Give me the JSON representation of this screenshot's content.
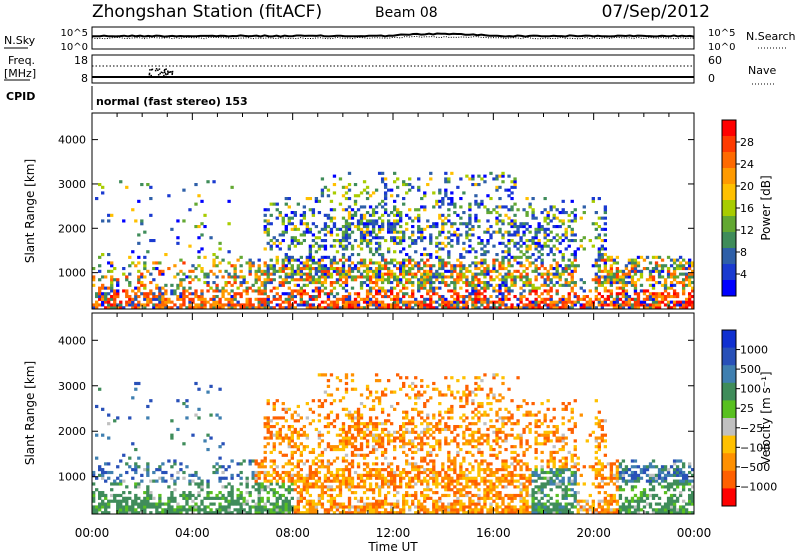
{
  "header": {
    "title": "Zhongshan Station (fitACF)",
    "beam": "Beam 08",
    "date": "07/Sep/2012"
  },
  "strips": {
    "nsky": {
      "label": "N.Sky",
      "left_ticks": [
        "10^5",
        "10^0"
      ],
      "right_label": "N.Search",
      "right_ticks": [
        "10^5",
        "10^0"
      ]
    },
    "freq": {
      "label_line1": "Freq.",
      "label_line2": "[MHz]",
      "left_ticks": [
        "18",
        "8"
      ],
      "right_label": "Nave",
      "right_ticks": [
        "60",
        "0"
      ]
    },
    "cpid": {
      "label": "CPID",
      "text": "normal (fast stereo) 153"
    }
  },
  "colorbars": {
    "power": {
      "title": "Power [dB]",
      "labels": [
        "28",
        "24",
        "20",
        "16",
        "12",
        "8",
        "4"
      ],
      "colors": [
        "#ff0000",
        "#ff3a00",
        "#ff6a00",
        "#ff9a00",
        "#ffc000",
        "#a8cc00",
        "#62a832",
        "#3f8c5a",
        "#2e5fa8",
        "#1a3ad0",
        "#0000ff"
      ]
    },
    "velocity": {
      "title": "Velocity [m s⁻¹]",
      "labels": [
        "1000",
        "500",
        "100",
        "25",
        "−25",
        "−100",
        "−500",
        "−1000"
      ],
      "colors": [
        "#1030d0",
        "#2850b8",
        "#3f7fb0",
        "#3f8c5a",
        "#58c020",
        "#c0c0c0",
        "#ffc000",
        "#ff9000",
        "#ff6000",
        "#ff0000"
      ]
    }
  },
  "chart_data": [
    {
      "type": "heatmap",
      "name": "power",
      "ylabel": "Slant Range [km]",
      "ylim": [
        180,
        4600
      ],
      "y_ticks": [
        "1000",
        "2000",
        "3000",
        "4000"
      ],
      "xlim_hours": [
        0,
        24
      ],
      "x_ticks": [
        "00:00",
        "04:00",
        "08:00",
        "12:00",
        "16:00",
        "20:00",
        "00:00"
      ]
    },
    {
      "type": "heatmap",
      "name": "velocity",
      "ylabel": "Slant Range [km]",
      "ylim": [
        180,
        4600
      ],
      "y_ticks": [
        "1000",
        "2000",
        "3000",
        "4000"
      ],
      "xlim_hours": [
        0,
        24
      ],
      "x_ticks": [
        "00:00",
        "04:00",
        "08:00",
        "12:00",
        "16:00",
        "20:00",
        "00:00"
      ],
      "xlabel": "Time UT"
    }
  ]
}
